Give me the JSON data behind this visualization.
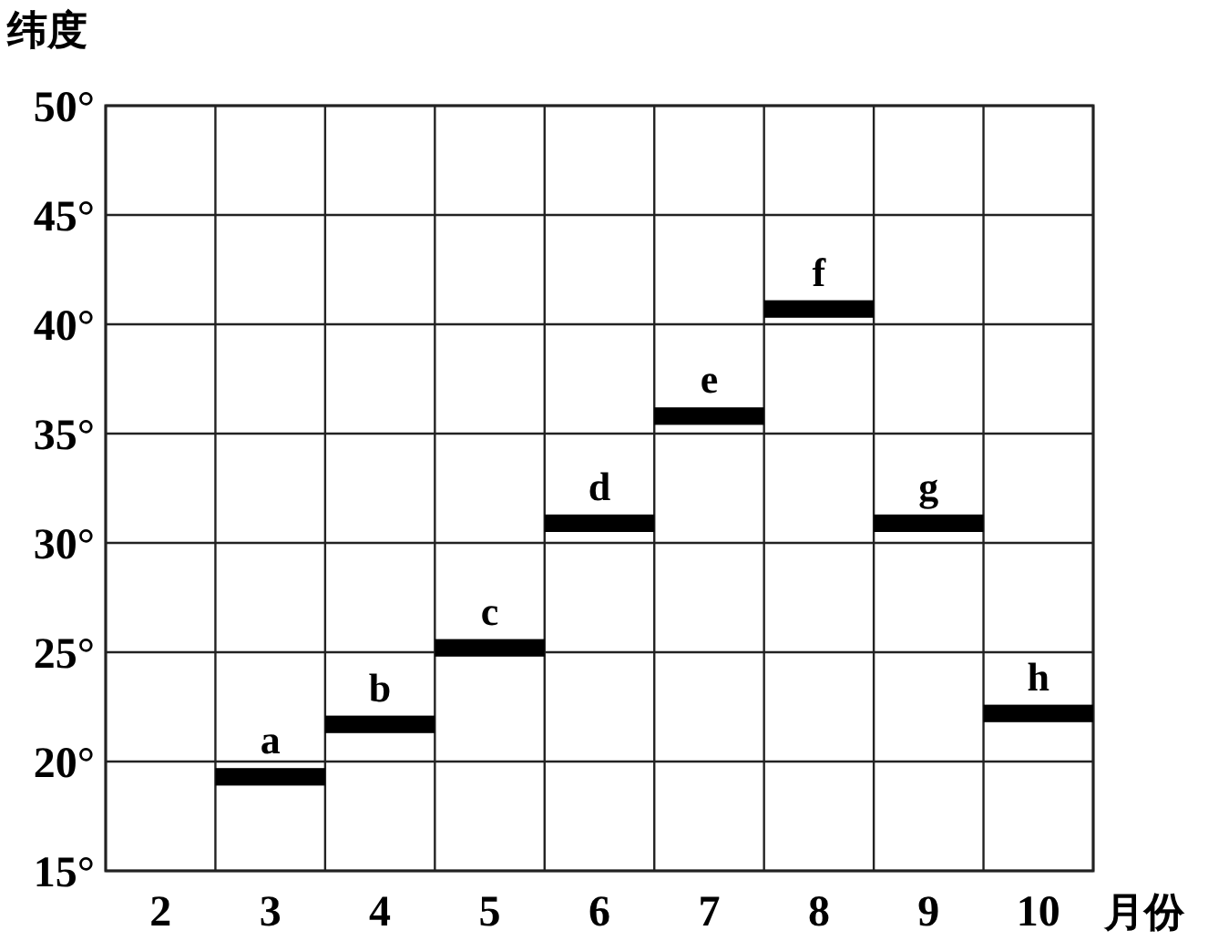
{
  "chart_data": {
    "type": "bar",
    "xlabel": "月份",
    "ylabel": "纬度",
    "categories": [
      "2",
      "3",
      "4",
      "5",
      "6",
      "7",
      "8",
      "9",
      "10"
    ],
    "values": [
      null,
      0.8,
      0.8,
      0.8,
      0.8,
      0.8,
      0.8,
      0.8,
      0.8
    ],
    "base": [
      null,
      18.9,
      21.3,
      24.8,
      30.5,
      35.4,
      40.3,
      30.5,
      21.8
    ],
    "value_labels": [
      null,
      "a",
      "b",
      "c",
      "d",
      "e",
      "f",
      "g",
      "h"
    ],
    "color": "#000000",
    "ylim": [
      15,
      50
    ],
    "yticks": [
      {
        "value": 15,
        "label": "15°"
      },
      {
        "value": 20,
        "label": "20°"
      },
      {
        "value": 25,
        "label": "25°"
      },
      {
        "value": 30,
        "label": "30°"
      },
      {
        "value": 35,
        "label": "35°"
      },
      {
        "value": 40,
        "label": "40°"
      },
      {
        "value": 45,
        "label": "45°"
      },
      {
        "value": 50,
        "label": "50°"
      }
    ],
    "grid": true
  }
}
